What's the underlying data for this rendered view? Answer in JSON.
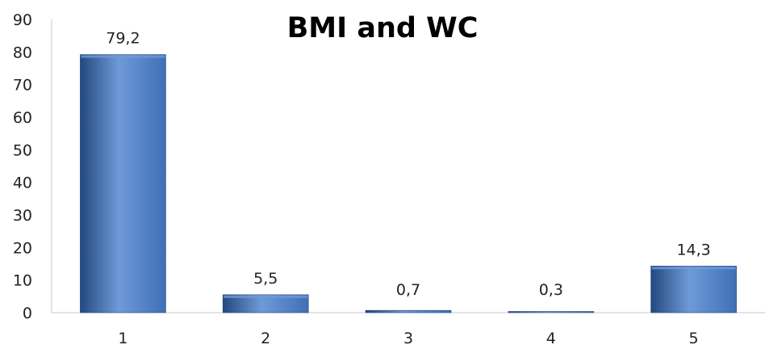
{
  "chart_data": {
    "type": "bar",
    "title": "BMI and WC",
    "xlabel": "",
    "ylabel": "",
    "categories": [
      "1",
      "2",
      "3",
      "4",
      "5"
    ],
    "values": [
      79.2,
      5.5,
      0.7,
      0.3,
      14.3
    ],
    "value_labels": [
      "79,2",
      "5,5",
      "0,7",
      "0,3",
      "14,3"
    ],
    "ylim": [
      0,
      90
    ],
    "yticks": [
      0,
      10,
      20,
      30,
      40,
      50,
      60,
      70,
      80,
      90
    ],
    "grid": false,
    "legend": "none",
    "bar_color": "#3f6fb6",
    "bar_highlight": "#6f9ad8",
    "bar_shadow": "#23487e"
  }
}
